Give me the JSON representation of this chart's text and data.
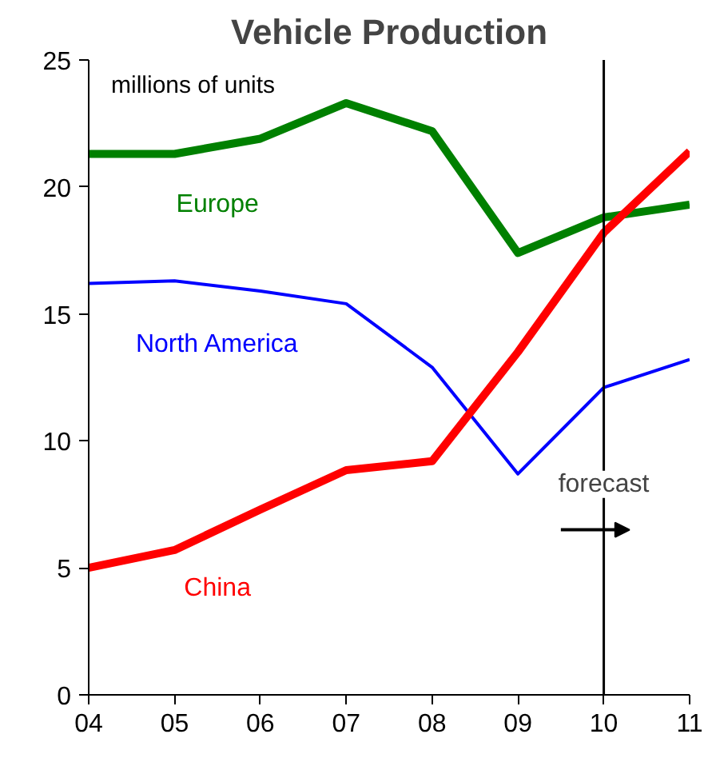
{
  "chart_data": {
    "type": "line",
    "title": "Vehicle Production",
    "x": [
      4,
      5,
      6,
      7,
      8,
      9,
      10,
      11
    ],
    "xlim": [
      4,
      11
    ],
    "xticks": [
      {
        "value": 4,
        "label": "04"
      },
      {
        "value": 5,
        "label": "05"
      },
      {
        "value": 6,
        "label": "06"
      },
      {
        "value": 7,
        "label": "07"
      },
      {
        "value": 8,
        "label": "08"
      },
      {
        "value": 9,
        "label": "09"
      },
      {
        "value": 10,
        "label": "10"
      },
      {
        "value": 11,
        "label": "11"
      }
    ],
    "ylim": [
      0,
      25
    ],
    "yticks": [
      0,
      5,
      10,
      15,
      20,
      25
    ],
    "grid": false,
    "legend": false,
    "marker": "none",
    "line_style": "solid",
    "series": [
      {
        "name": "Europe",
        "color": "#008000",
        "values": [
          21.3,
          21.3,
          21.9,
          23.3,
          22.2,
          17.4,
          18.8,
          19.3
        ]
      },
      {
        "name": "North America",
        "color": "#0000ff",
        "values": [
          16.2,
          16.3,
          15.9,
          15.4,
          12.9,
          8.7,
          12.1,
          13.2
        ]
      },
      {
        "name": "China",
        "color": "#ff0000",
        "values": [
          5.0,
          5.7,
          7.3,
          8.85,
          9.2,
          13.5,
          18.2,
          21.4
        ]
      }
    ],
    "annotations": [
      "millions of units"
    ],
    "ref_lines": [
      {
        "axis": "x",
        "value": 10,
        "label": "forecast",
        "color": "#000000"
      }
    ]
  }
}
